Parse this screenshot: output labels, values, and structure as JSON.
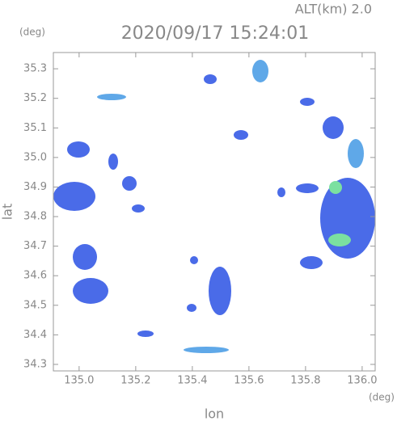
{
  "chart_data": {
    "type": "map",
    "title": "2020/09/17 15:24:01",
    "subtitle": "ALT(km) 2.0",
    "x_label": "lon",
    "y_label": "lat",
    "x_unit": "(deg)",
    "y_unit": "(deg)",
    "xlim": [
      134.909,
      136.046
    ],
    "ylim": [
      34.278,
      35.355
    ],
    "xticks": [
      {
        "value": 135,
        "label": "135.0"
      },
      135.2,
      135.4,
      135.6,
      135.8,
      {
        "value": 136,
        "label": "136.0"
      }
    ],
    "yticks": [
      34.3,
      34.4,
      34.5,
      34.6,
      34.7,
      34.8,
      34.9,
      {
        "value": 35,
        "label": "35.0"
      },
      35.1,
      35.2,
      35.3
    ]
  }
}
